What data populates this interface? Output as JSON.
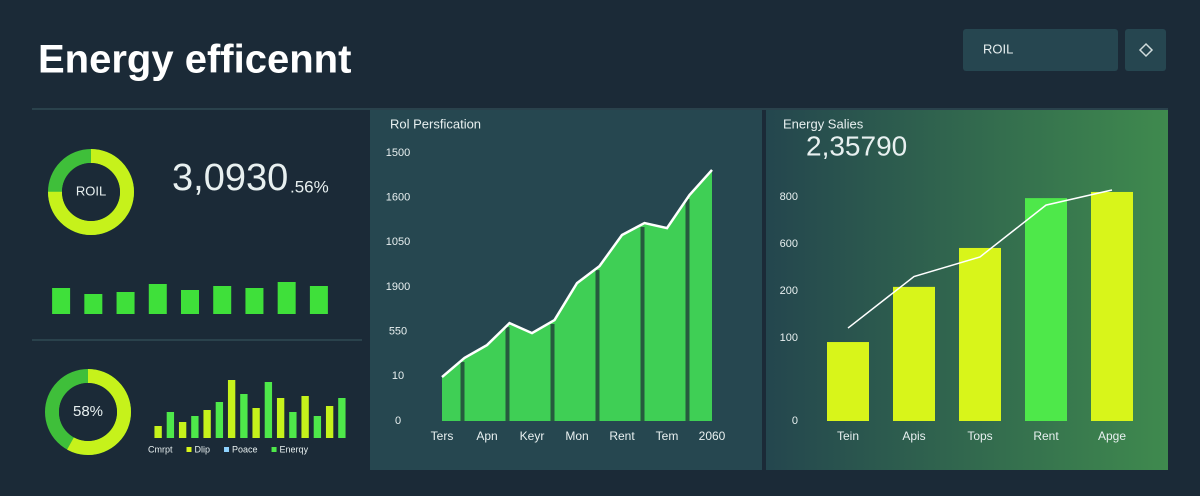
{
  "header": {
    "title": "Energy efficennt",
    "button": "ROIL"
  },
  "kpi": {
    "value": "3,0930",
    "suffix": ".56%"
  },
  "chart_data": [
    {
      "type": "donut",
      "label": "ROIL",
      "values": [
        75
      ],
      "color": "#c6f21b",
      "track": "#3fbf3a"
    },
    {
      "type": "bar",
      "values": [
        26,
        20,
        22,
        30,
        24,
        28,
        26,
        32,
        28
      ],
      "color": "#3fe03a"
    },
    {
      "type": "donut",
      "values": [
        58
      ],
      "value_labels": [
        "58%"
      ],
      "color": "#c6f21b",
      "track": "#3fbf3a"
    },
    {
      "type": "bar",
      "values": [
        12,
        26,
        16,
        22,
        28,
        36,
        58,
        44,
        30,
        56,
        40,
        26,
        42,
        22,
        32,
        40
      ],
      "colors": [
        "#c6f21b",
        "#4ee84a",
        "#c6f21b",
        "#4ee84a",
        "#c6f21b",
        "#4ee84a",
        "#c6f21b",
        "#4ee84a",
        "#c6f21b",
        "#4ee84a",
        "#c6f21b",
        "#4ee84a",
        "#c6f21b",
        "#4ee84a",
        "#c6f21b",
        "#4ee84a"
      ],
      "legend": [
        {
          "name": "Cmrpt",
          "color": "#4ee84a"
        },
        {
          "name": "Dlip",
          "color": "#d8f51a"
        },
        {
          "name": "Poace",
          "color": "#8fd3ff"
        },
        {
          "name": "Enerqy",
          "color": "#4ee84a"
        }
      ]
    },
    {
      "type": "area",
      "title": "Rol Persfication",
      "categories": [
        "Ters",
        null,
        "Apn",
        null,
        "Keyr",
        null,
        "Mon",
        null,
        "Rent",
        null,
        "Tem",
        null,
        "2060"
      ],
      "values": [
        246,
        353,
        425,
        548,
        492,
        565,
        772,
        867,
        1041,
        1108,
        1080,
        1265,
        1405
      ],
      "ylim": [
        0,
        1500
      ],
      "yticks": [
        0,
        {
          "value": 250,
          "label": "10"
        },
        {
          "value": 500,
          "label": "550"
        },
        {
          "value": 750,
          "label": "1900"
        },
        {
          "value": 1000,
          "label": "1050"
        },
        {
          "value": 1250,
          "label": "1600"
        },
        1500
      ],
      "color": "#3fcf55",
      "line_color": "#ffffff"
    },
    {
      "type": "bar",
      "subtitle": "Energy Salies",
      "headline": "2,35790",
      "categories": [
        "Tein",
        "Apis",
        "Tops",
        "Rent",
        "Apge"
      ],
      "values": [
        282,
        479,
        618,
        796,
        818
      ],
      "colors": [
        "#d8f51a",
        "#d8f51a",
        "#d8f51a",
        "#4ee84a",
        "#d8f51a"
      ],
      "ylim": [
        0,
        800
      ],
      "yticks": [
        0,
        {
          "value": 296,
          "label": "100"
        },
        {
          "value": 464,
          "label": "200"
        },
        {
          "value": 632,
          "label": "600"
        },
        800
      ],
      "line": {
        "values": [
          332,
          516,
          586,
          771,
          825
        ],
        "color": "#ffffff"
      }
    }
  ]
}
